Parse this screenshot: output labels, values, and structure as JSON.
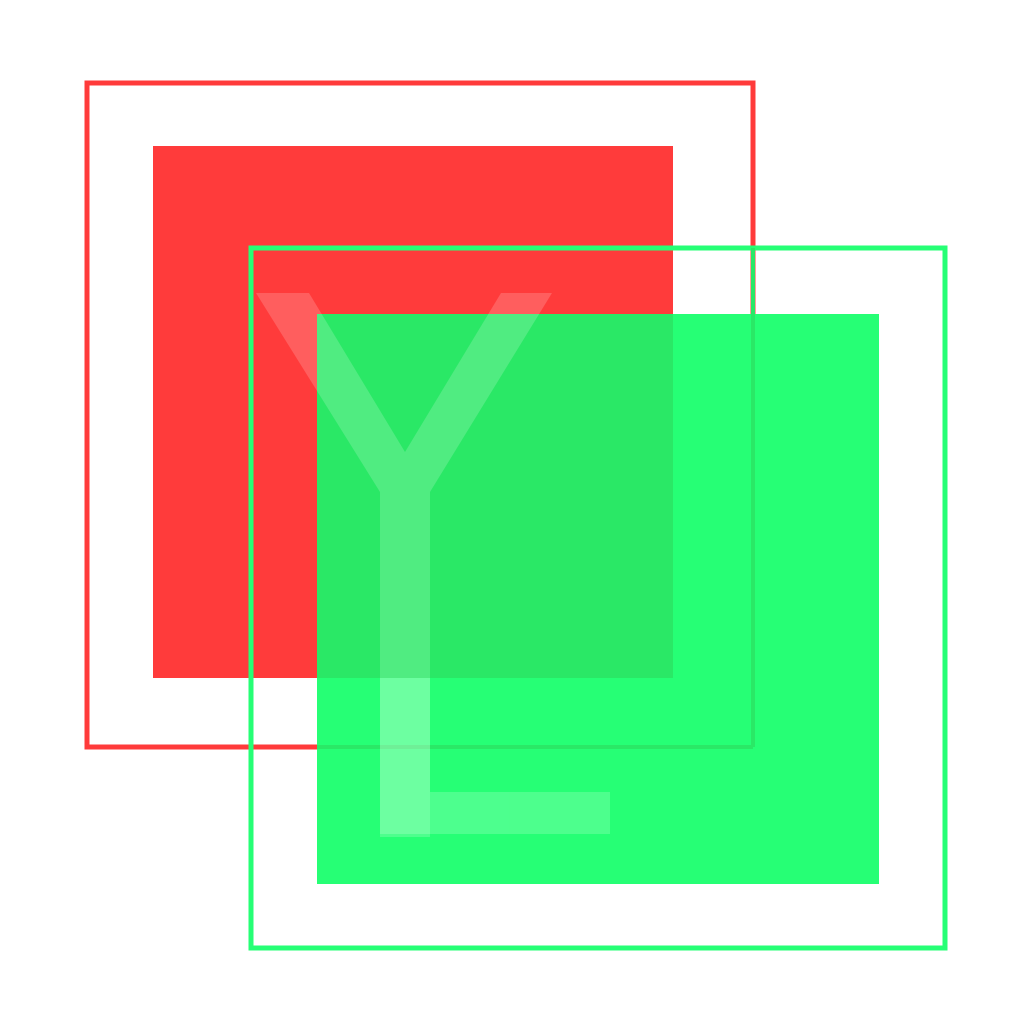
{
  "colors": {
    "background": "#ffffff",
    "red": "#ff3b3b",
    "green": "#26ff75",
    "overlay_green": "#2ae866",
    "glyph_white": "#ffffff"
  },
  "glyphs": {
    "y_letter": "Y",
    "l_letter": "L"
  }
}
